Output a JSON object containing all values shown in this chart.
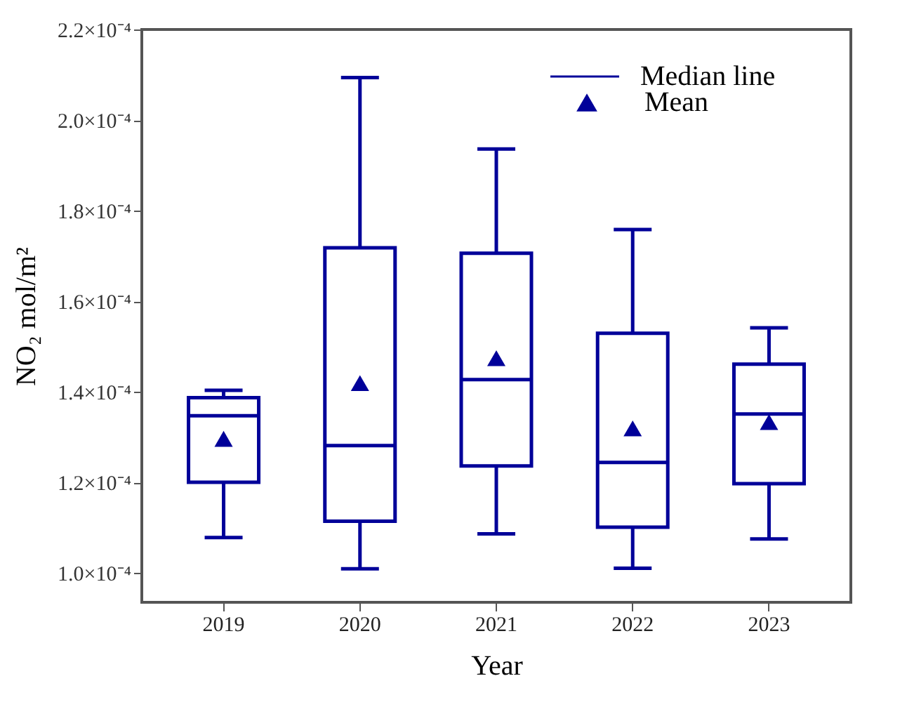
{
  "chart_data": {
    "type": "box",
    "xlabel": "Year",
    "ylabel": "NO₂ mol/m²",
    "categories": [
      "2019",
      "2020",
      "2021",
      "2022",
      "2023"
    ],
    "series": [
      {
        "name": "Median line",
        "color": "#000099",
        "boxes": [
          {
            "low": 0.0001078,
            "q1": 0.00012,
            "median": 0.0001347,
            "q3": 0.0001387,
            "high": 0.0001403
          },
          {
            "low": 0.0001009,
            "q1": 0.0001114,
            "median": 0.0001281,
            "q3": 0.0001718,
            "high": 0.0002094
          },
          {
            "low": 0.0001086,
            "q1": 0.0001236,
            "median": 0.0001427,
            "q3": 0.0001706,
            "high": 0.0001936
          },
          {
            "low": 0.000101,
            "q1": 0.0001101,
            "median": 0.0001244,
            "q3": 0.0001529,
            "high": 0.0001758
          },
          {
            "low": 0.0001075,
            "q1": 0.0001197,
            "median": 0.0001351,
            "q3": 0.0001461,
            "high": 0.0001541
          }
        ]
      },
      {
        "name": "Mean",
        "type": "scatter",
        "color": "#000099",
        "values": [
          0.0001296,
          0.0001419,
          0.0001474,
          0.0001319,
          0.0001333
        ]
      }
    ],
    "marker": "triangle",
    "legend": "top right",
    "grid": false,
    "ylim": [
      9.35e-05,
      0.00022
    ],
    "yticks": [
      {
        "value": 0.0001,
        "label": "1.0×10⁻⁴"
      },
      {
        "value": 0.00012,
        "label": "1.2×10⁻⁴"
      },
      {
        "value": 0.00014,
        "label": "1.4×10⁻⁴"
      },
      {
        "value": 0.00016,
        "label": "1.6×10⁻⁴"
      },
      {
        "value": 0.00018,
        "label": "1.8×10⁻⁴"
      },
      {
        "value": 0.0002,
        "label": "2.0×10⁻⁴"
      },
      {
        "value": 0.00022,
        "label": "2.2×10⁻⁴"
      }
    ]
  }
}
